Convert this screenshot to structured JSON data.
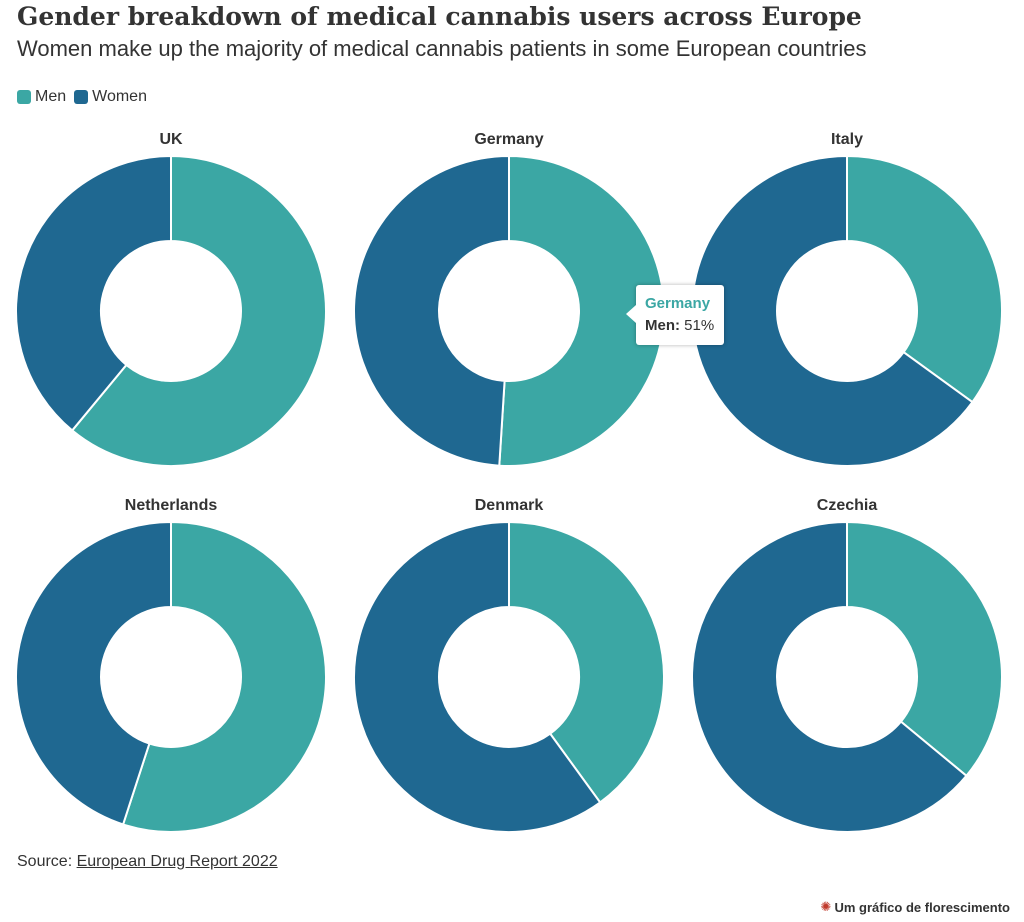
{
  "title": "Gender breakdown of medical cannabis users across Europe",
  "subtitle": "Women make up the majority of medical cannabis patients in some European countries",
  "legend": [
    {
      "label": "Men",
      "color": "#3ba7a4"
    },
    {
      "label": "Women",
      "color": "#1f6891"
    }
  ],
  "chart_data": {
    "type": "pie",
    "style": "donut",
    "series_names": [
      "Men",
      "Women"
    ],
    "colors": {
      "Men": "#3ba7a4",
      "Women": "#1f6891"
    },
    "panels": [
      {
        "name": "UK",
        "men": 61,
        "women": 39
      },
      {
        "name": "Germany",
        "men": 51,
        "women": 49
      },
      {
        "name": "Italy",
        "men": 35,
        "women": 65
      },
      {
        "name": "Netherlands",
        "men": 55,
        "women": 45
      },
      {
        "name": "Denmark",
        "men": 40,
        "women": 60
      },
      {
        "name": "Czechia",
        "men": 36,
        "women": 64
      }
    ],
    "legend_position": "top-left"
  },
  "tooltip": {
    "title": "Germany",
    "label": "Men:",
    "value": "51%"
  },
  "source": {
    "prefix": "Source:",
    "link_text": "European Drug Report 2022"
  },
  "credit": {
    "text": "Um gráfico de florescimento",
    "icon": "flourish-logo-icon"
  }
}
